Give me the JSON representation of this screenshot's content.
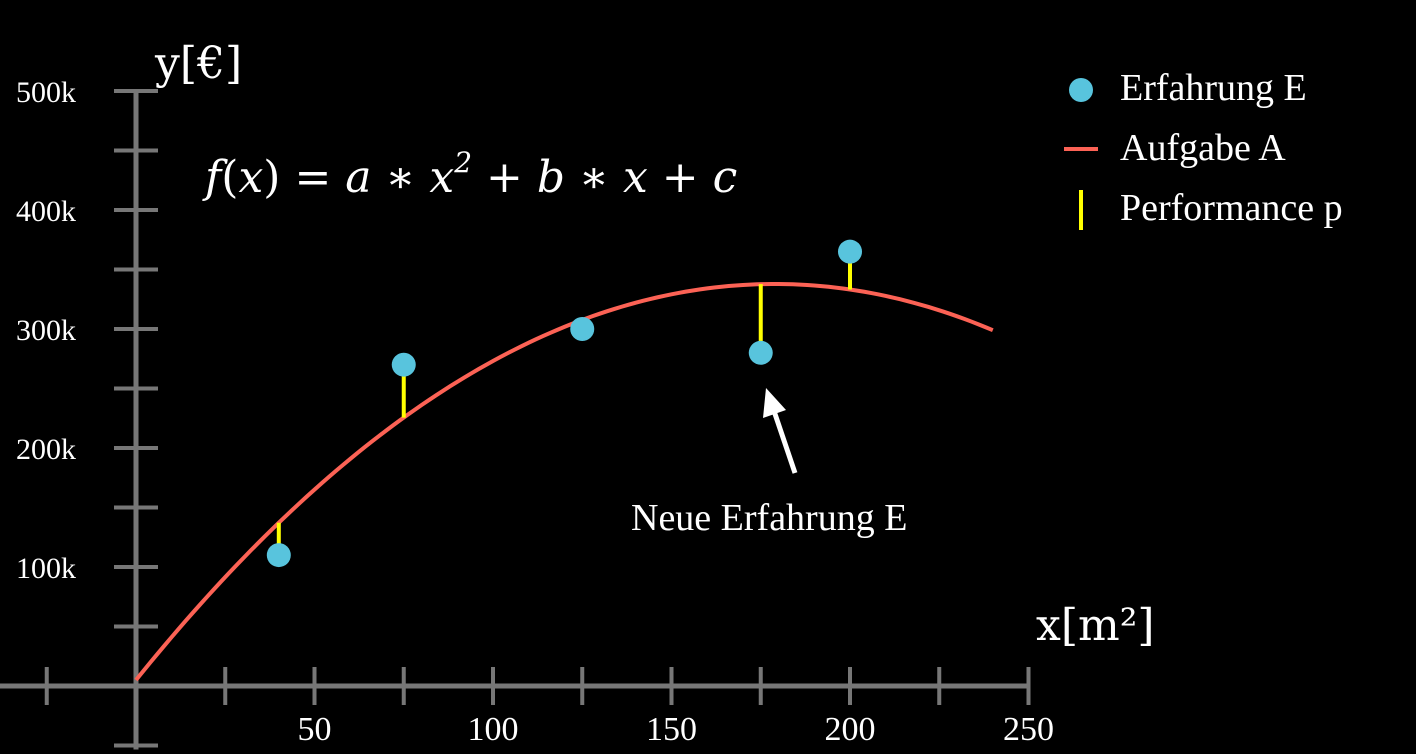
{
  "chart_data": {
    "type": "scatter",
    "xlabel": "x[m²]",
    "ylabel": "y[€]",
    "xlim": [
      -50,
      250
    ],
    "ylim": [
      -50000,
      500000
    ],
    "x_ticks": [
      50,
      100,
      150,
      200,
      250
    ],
    "x_tick_labels": [
      "50",
      "100",
      "150",
      "200",
      "250"
    ],
    "x_minor_ticks": [
      -25,
      25,
      75,
      125,
      175,
      225
    ],
    "y_ticks": [
      100000,
      200000,
      300000,
      400000,
      500000
    ],
    "y_tick_labels": [
      "100k",
      "200k",
      "300k",
      "400k",
      "500k"
    ],
    "y_minor_ticks": [
      50000,
      150000,
      250000,
      350000,
      450000
    ],
    "formula": {
      "f": "f",
      "x": "x",
      "eq": " = a ∗ x",
      "exp": "2",
      "rest": " + b ∗ x + c"
    },
    "points": {
      "name": "Erfahrung E",
      "color": "#58C4DD",
      "x": [
        40,
        75,
        125,
        175,
        200
      ],
      "y": [
        110000,
        270000,
        300000,
        280000,
        365000
      ]
    },
    "curve": {
      "name": "Aufgabe A",
      "color": "#FC6255",
      "a": -10.4,
      "b": 3721,
      "c": 5000,
      "x_range": [
        0,
        240
      ]
    },
    "residuals": {
      "name": "Performance p",
      "color": "#FFFF00"
    },
    "annotation": {
      "text": "Neue Erfahrung E",
      "points_to_x": 175,
      "points_to_y": 280000
    },
    "legend": [
      {
        "label": "Erfahrung E",
        "marker": "dot",
        "color": "#58C4DD"
      },
      {
        "label": "Aufgabe A",
        "marker": "line",
        "color": "#FC6255"
      },
      {
        "label": "Performance p",
        "marker": "vline",
        "color": "#FFFF00"
      }
    ],
    "legend_position": "top-right",
    "grid": false,
    "axis_color": "#777777"
  }
}
